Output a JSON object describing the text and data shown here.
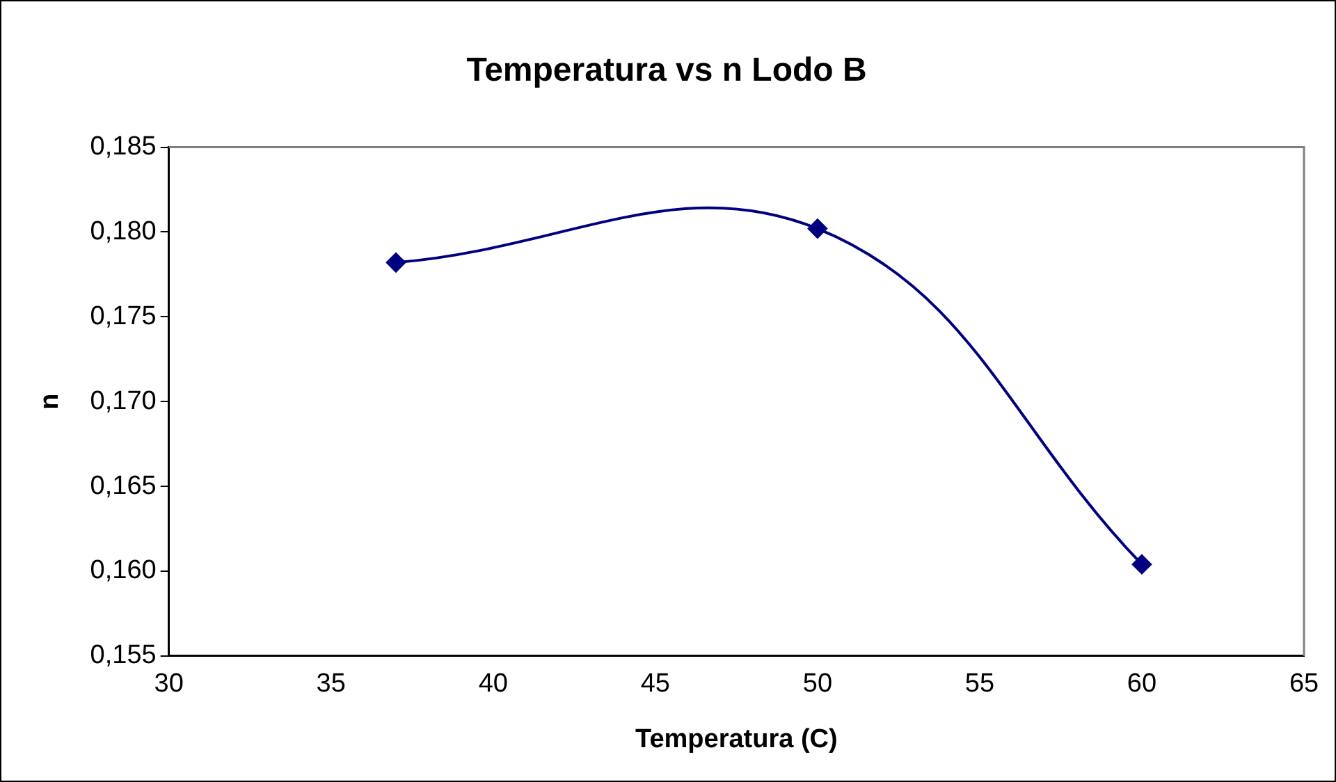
{
  "chart_data": {
    "type": "line",
    "title": "Temperatura vs n Lodo B",
    "xlabel": "Temperatura (C)",
    "ylabel": "n",
    "x": [
      37,
      50,
      60
    ],
    "series": [
      {
        "color": "#000080",
        "values": [
          0.1782,
          0.1802,
          0.1604
        ]
      }
    ],
    "xlim": [
      30,
      65
    ],
    "xticks": [
      30,
      35,
      40,
      45,
      50,
      55,
      60,
      65
    ],
    "ylim": [
      0.155,
      0.185
    ],
    "yticks": [
      {
        "value": 0.155,
        "label": "0,155"
      },
      {
        "value": 0.16,
        "label": "0,160"
      },
      {
        "value": 0.165,
        "label": "0,165"
      },
      {
        "value": 0.17,
        "label": "0,170"
      },
      {
        "value": 0.175,
        "label": "0,175"
      },
      {
        "value": 0.18,
        "label": "0,180"
      },
      {
        "value": 0.185,
        "label": "0,185"
      }
    ],
    "grid": false,
    "legend": false,
    "marker": "diamond",
    "line_style": "solid"
  }
}
